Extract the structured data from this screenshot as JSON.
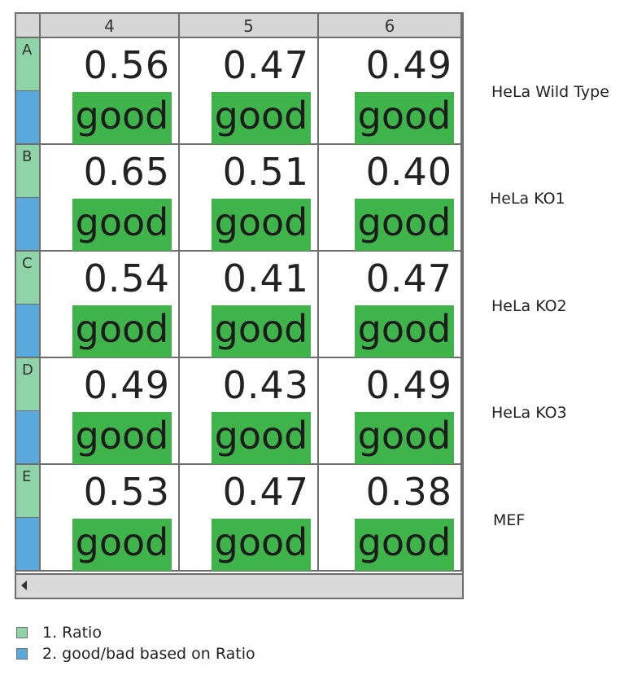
{
  "colors": {
    "ratio_band": "#8fd3a8",
    "status_band": "#5aa9dc",
    "good_fill": "#3fb44a",
    "header_fill": "#d6d6d6",
    "grid_line": "#6e6e6e"
  },
  "plate": {
    "columns": [
      "4",
      "5",
      "6"
    ],
    "rows": [
      {
        "letter": "A",
        "label": "HeLa Wild Type",
        "cells": [
          {
            "ratio": "0.56",
            "status": "good"
          },
          {
            "ratio": "0.47",
            "status": "good"
          },
          {
            "ratio": "0.49",
            "status": "good"
          }
        ]
      },
      {
        "letter": "B",
        "label": "HeLa KO1",
        "cells": [
          {
            "ratio": "0.65",
            "status": "good"
          },
          {
            "ratio": "0.51",
            "status": "good"
          },
          {
            "ratio": "0.40",
            "status": "good"
          }
        ]
      },
      {
        "letter": "C",
        "label": "HeLa KO2",
        "cells": [
          {
            "ratio": "0.54",
            "status": "good"
          },
          {
            "ratio": "0.41",
            "status": "good"
          },
          {
            "ratio": "0.47",
            "status": "good"
          }
        ]
      },
      {
        "letter": "D",
        "label": "HeLa KO3",
        "cells": [
          {
            "ratio": "0.49",
            "status": "good"
          },
          {
            "ratio": "0.43",
            "status": "good"
          },
          {
            "ratio": "0.49",
            "status": "good"
          }
        ]
      },
      {
        "letter": "E",
        "label": "MEF",
        "cells": [
          {
            "ratio": "0.53",
            "status": "good"
          },
          {
            "ratio": "0.47",
            "status": "good"
          },
          {
            "ratio": "0.38",
            "status": "good"
          }
        ]
      }
    ]
  },
  "scrollbar": {
    "icon": "scroll-left-arrow-icon"
  },
  "legend": {
    "items": [
      {
        "label": "1. Ratio",
        "icon": "ratio-swatch"
      },
      {
        "label": "2. good/bad based on Ratio",
        "icon": "status-swatch"
      }
    ]
  }
}
